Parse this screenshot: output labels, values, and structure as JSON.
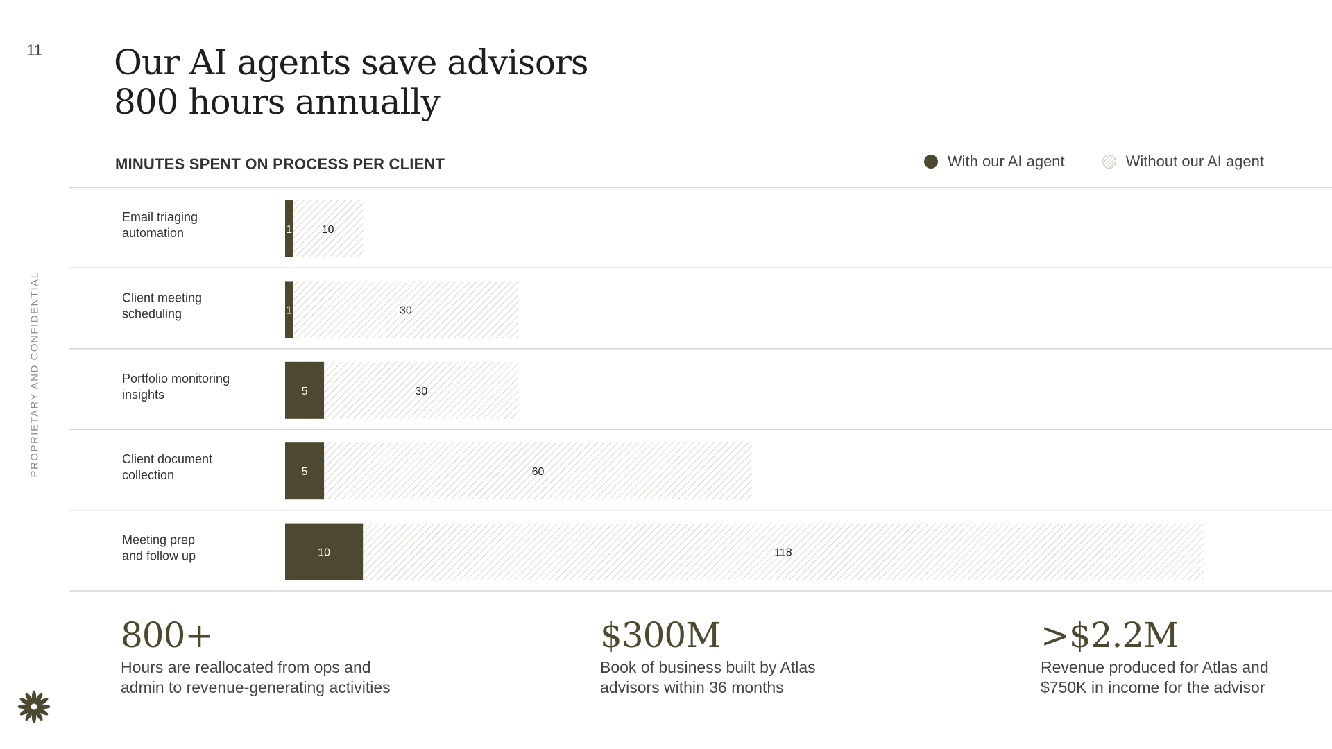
{
  "page_number": "11",
  "confidential_label": "PROPRIETARY AND CONFIDENTIAL",
  "title_lines": [
    "Our AI agents save advisors",
    "800 hours annually"
  ],
  "chart_heading": "MINUTES SPENT ON PROCESS PER CLIENT",
  "legend": {
    "with_label": "With our AI agent",
    "without_label": "Without our AI agent"
  },
  "colors": {
    "with": "#4d4830",
    "without_hatch": "#c8c7b8",
    "divider": "#d6d6d6"
  },
  "logo_icon": "flower-logo-icon",
  "chart_data": {
    "type": "bar",
    "orientation": "horizontal",
    "title": "MINUTES SPENT ON PROCESS PER CLIENT",
    "categories": [
      [
        "Email triaging",
        "automation"
      ],
      [
        "Client meeting",
        "scheduling"
      ],
      [
        "Portfolio monitoring",
        "insights"
      ],
      [
        "Client document",
        "collection"
      ],
      [
        "Meeting prep",
        "and follow up"
      ]
    ],
    "series": [
      {
        "name": "With our AI agent",
        "values": [
          1,
          1,
          5,
          5,
          10
        ]
      },
      {
        "name": "Without our AI agent",
        "values": [
          10,
          30,
          30,
          60,
          118
        ]
      }
    ],
    "xlim": [
      0,
      129
    ],
    "grid": false,
    "legend_position": "top-right"
  },
  "stats": [
    {
      "value": "800+",
      "desc_lines": [
        "Hours are reallocated from ops and",
        "admin to revenue-generating activities"
      ]
    },
    {
      "value": "$300M",
      "desc_lines": [
        "Book of business built by Atlas",
        "advisors within 36 months"
      ]
    },
    {
      "value": ">$2.2M",
      "desc_lines": [
        "Revenue produced for Atlas and",
        "$750K in income for the advisor"
      ]
    }
  ]
}
